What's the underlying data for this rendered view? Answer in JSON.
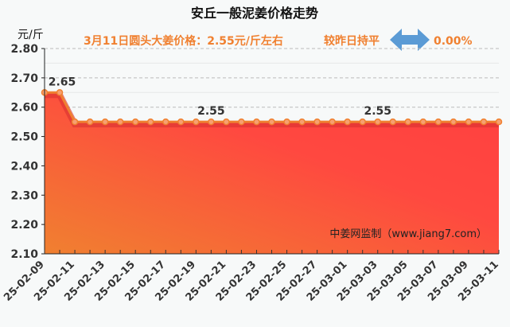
{
  "chart_data": {
    "type": "area",
    "title": "安丘一般泥姜价格走势",
    "subtitle": "3月11日圆头大姜价格：2.55元/斤左右",
    "change_text": "较昨日持平",
    "change_icon": "double-arrow-horizontal-icon",
    "change_value": "0.00%",
    "ylabel": "元/斤",
    "watermark": "中姜网监制（www.jiang7.com）",
    "ylim": [
      2.1,
      2.8
    ],
    "yticks": [
      "2.80",
      "2.70",
      "2.60",
      "2.50",
      "2.40",
      "2.30",
      "2.20",
      "2.10"
    ],
    "xtick_labels": [
      "25-02-09",
      "25-02-11",
      "25-02-13",
      "25-02-15",
      "25-02-17",
      "25-02-19",
      "25-02-21",
      "25-02-23",
      "25-02-25",
      "25-02-27",
      "25-03-01",
      "25-03-03",
      "25-03-05",
      "25-03-07",
      "25-03-09",
      "25-03-11"
    ],
    "x": [
      "25-02-09",
      "25-02-10",
      "25-02-11",
      "25-02-12",
      "25-02-13",
      "25-02-14",
      "25-02-15",
      "25-02-16",
      "25-02-17",
      "25-02-18",
      "25-02-19",
      "25-02-20",
      "25-02-21",
      "25-02-22",
      "25-02-23",
      "25-02-24",
      "25-02-25",
      "25-02-26",
      "25-02-27",
      "25-02-28",
      "25-03-01",
      "25-03-02",
      "25-03-03",
      "25-03-04",
      "25-03-05",
      "25-03-06",
      "25-03-07",
      "25-03-08",
      "25-03-09",
      "25-03-10",
      "25-03-11"
    ],
    "values": [
      2.65,
      2.65,
      2.55,
      2.55,
      2.55,
      2.55,
      2.55,
      2.55,
      2.55,
      2.55,
      2.55,
      2.55,
      2.55,
      2.55,
      2.55,
      2.55,
      2.55,
      2.55,
      2.55,
      2.55,
      2.55,
      2.55,
      2.55,
      2.55,
      2.55,
      2.55,
      2.55,
      2.55,
      2.55,
      2.55,
      2.55
    ],
    "data_labels": [
      {
        "x": "25-02-09",
        "text": "2.65"
      },
      {
        "x": "25-02-20",
        "text": "2.55"
      },
      {
        "x": "25-03-03",
        "text": "2.55"
      }
    ],
    "grid": "horizontal dashed",
    "colors": {
      "line": "#f08030",
      "fill_top": "#ff4040",
      "fill_bottom": "#f08030",
      "accent": "#f08030",
      "arrow": "#5b9bd5"
    }
  }
}
